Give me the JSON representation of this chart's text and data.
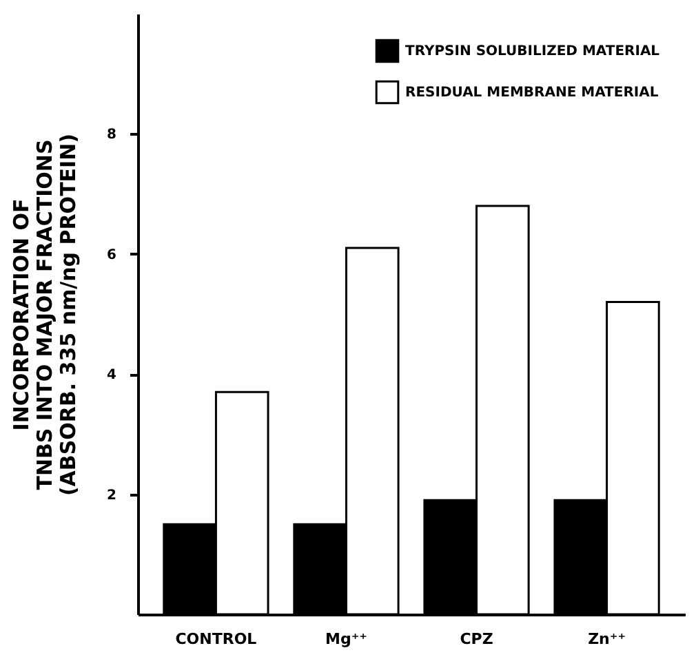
{
  "chart_data": {
    "type": "bar",
    "ylabel": "INCORPORATION OF\nTNBS INTO MAJOR FRACTIONS\n(ABSORB. 335 nm/ng PROTEIN)",
    "categories": [
      "CONTROL",
      "Mg⁺⁺",
      "CPZ",
      "Zn⁺⁺"
    ],
    "series": [
      {
        "name": "TRYPSIN SOLUBILIZED MATERIAL",
        "color": "#000000",
        "values": [
          1.5,
          1.5,
          1.9,
          1.9
        ]
      },
      {
        "name": "RESIDUAL MEMBRANE MATERIAL",
        "color": "#ffffff",
        "values": [
          3.7,
          6.1,
          6.8,
          5.2
        ]
      }
    ],
    "ylim": [
      0,
      10
    ],
    "yticks": [
      2,
      4,
      6,
      8
    ],
    "grid": false,
    "legend": "top right"
  }
}
